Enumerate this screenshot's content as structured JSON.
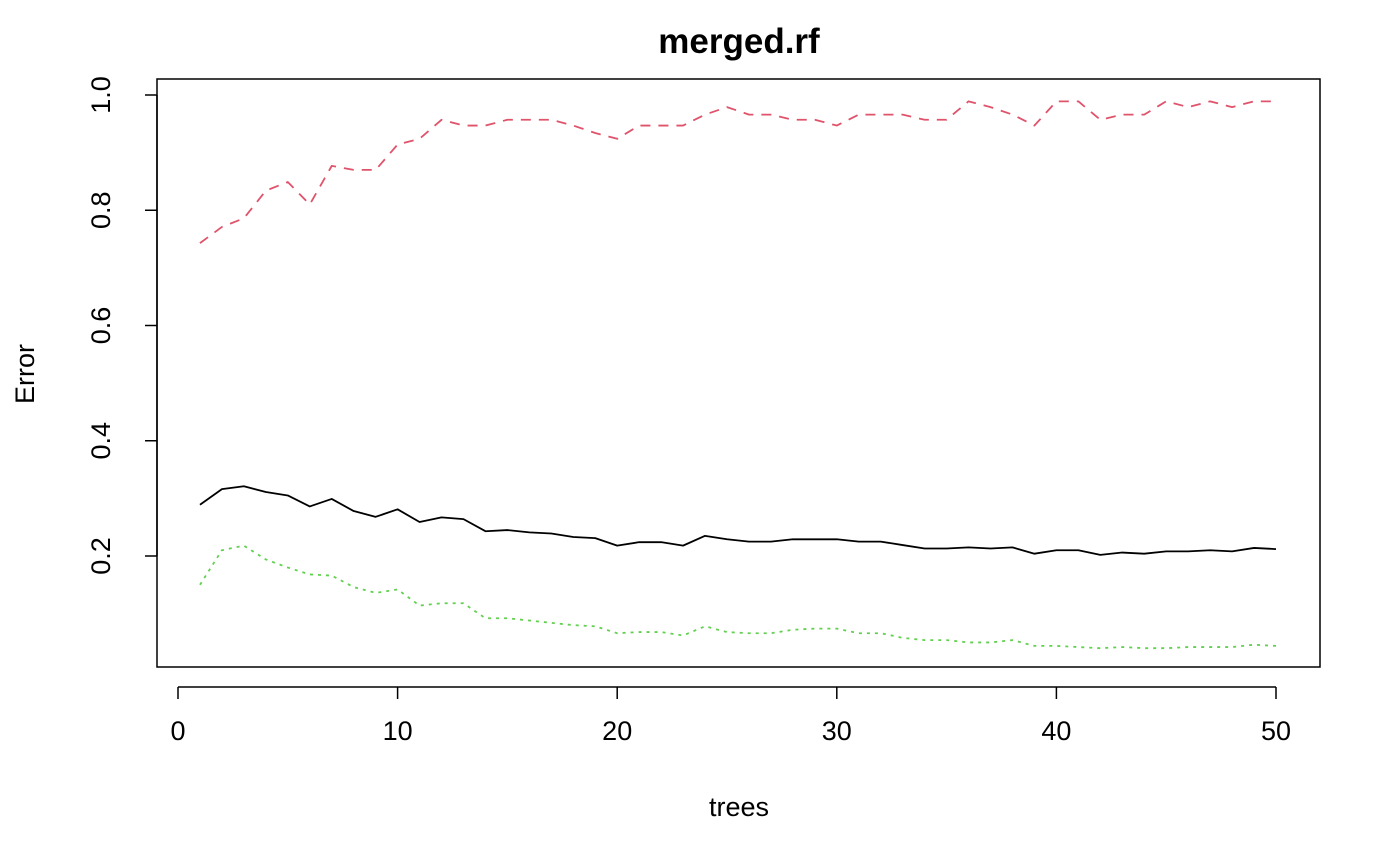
{
  "chart_data": {
    "type": "line",
    "title": "merged.rf",
    "xlabel": "trees",
    "ylabel": "Error",
    "xlim": [
      0,
      50
    ],
    "ylim": [
      0.04,
      1.0
    ],
    "xticks": [
      0,
      10,
      20,
      30,
      40,
      50
    ],
    "xtick_labels": [
      "0",
      "10",
      "20",
      "30",
      "40",
      "50"
    ],
    "yticks": [
      0.2,
      0.4,
      0.6,
      0.8,
      1.0
    ],
    "ytick_labels": [
      "0.2",
      "0.4",
      "0.6",
      "0.8",
      "1.0"
    ],
    "grid": false,
    "legend": "none",
    "x": [
      1,
      2,
      3,
      4,
      5,
      6,
      7,
      8,
      9,
      10,
      11,
      12,
      13,
      14,
      15,
      16,
      17,
      18,
      19,
      20,
      21,
      22,
      23,
      24,
      25,
      26,
      27,
      28,
      29,
      30,
      31,
      32,
      33,
      34,
      35,
      36,
      37,
      38,
      39,
      40,
      41,
      42,
      43,
      44,
      45,
      46,
      47,
      48,
      49,
      50
    ],
    "series": [
      {
        "color": "#000000",
        "line_style": "solid",
        "values": [
          0.289,
          0.316,
          0.321,
          0.311,
          0.305,
          0.286,
          0.299,
          0.278,
          0.268,
          0.281,
          0.259,
          0.267,
          0.264,
          0.243,
          0.245,
          0.241,
          0.239,
          0.233,
          0.231,
          0.218,
          0.224,
          0.224,
          0.218,
          0.235,
          0.229,
          0.225,
          0.225,
          0.229,
          0.229,
          0.229,
          0.225,
          0.225,
          0.219,
          0.213,
          0.213,
          0.215,
          0.213,
          0.215,
          0.204,
          0.21,
          0.21,
          0.202,
          0.206,
          0.204,
          0.208,
          0.208,
          0.21,
          0.208,
          0.214,
          0.212
        ]
      },
      {
        "color": "#DF536B",
        "line_style": "dashed",
        "values": [
          0.743,
          0.771,
          0.786,
          0.834,
          0.849,
          0.81,
          0.877,
          0.87,
          0.87,
          0.914,
          0.924,
          0.957,
          0.947,
          0.947,
          0.957,
          0.957,
          0.957,
          0.947,
          0.934,
          0.924,
          0.947,
          0.947,
          0.947,
          0.966,
          0.979,
          0.966,
          0.966,
          0.957,
          0.957,
          0.947,
          0.966,
          0.966,
          0.966,
          0.957,
          0.957,
          0.989,
          0.979,
          0.966,
          0.947,
          0.989,
          0.989,
          0.957,
          0.966,
          0.966,
          0.989,
          0.979,
          0.989,
          0.979,
          0.989,
          0.989
        ]
      },
      {
        "color": "#61D04F",
        "line_style": "dotted",
        "values": [
          0.15,
          0.21,
          0.218,
          0.194,
          0.18,
          0.168,
          0.166,
          0.146,
          0.136,
          0.142,
          0.114,
          0.118,
          0.118,
          0.092,
          0.092,
          0.088,
          0.084,
          0.08,
          0.078,
          0.066,
          0.068,
          0.068,
          0.062,
          0.078,
          0.068,
          0.066,
          0.066,
          0.072,
          0.074,
          0.074,
          0.066,
          0.066,
          0.058,
          0.054,
          0.054,
          0.05,
          0.05,
          0.054,
          0.044,
          0.044,
          0.042,
          0.04,
          0.042,
          0.04,
          0.04,
          0.042,
          0.042,
          0.042,
          0.046,
          0.044
        ]
      }
    ]
  }
}
